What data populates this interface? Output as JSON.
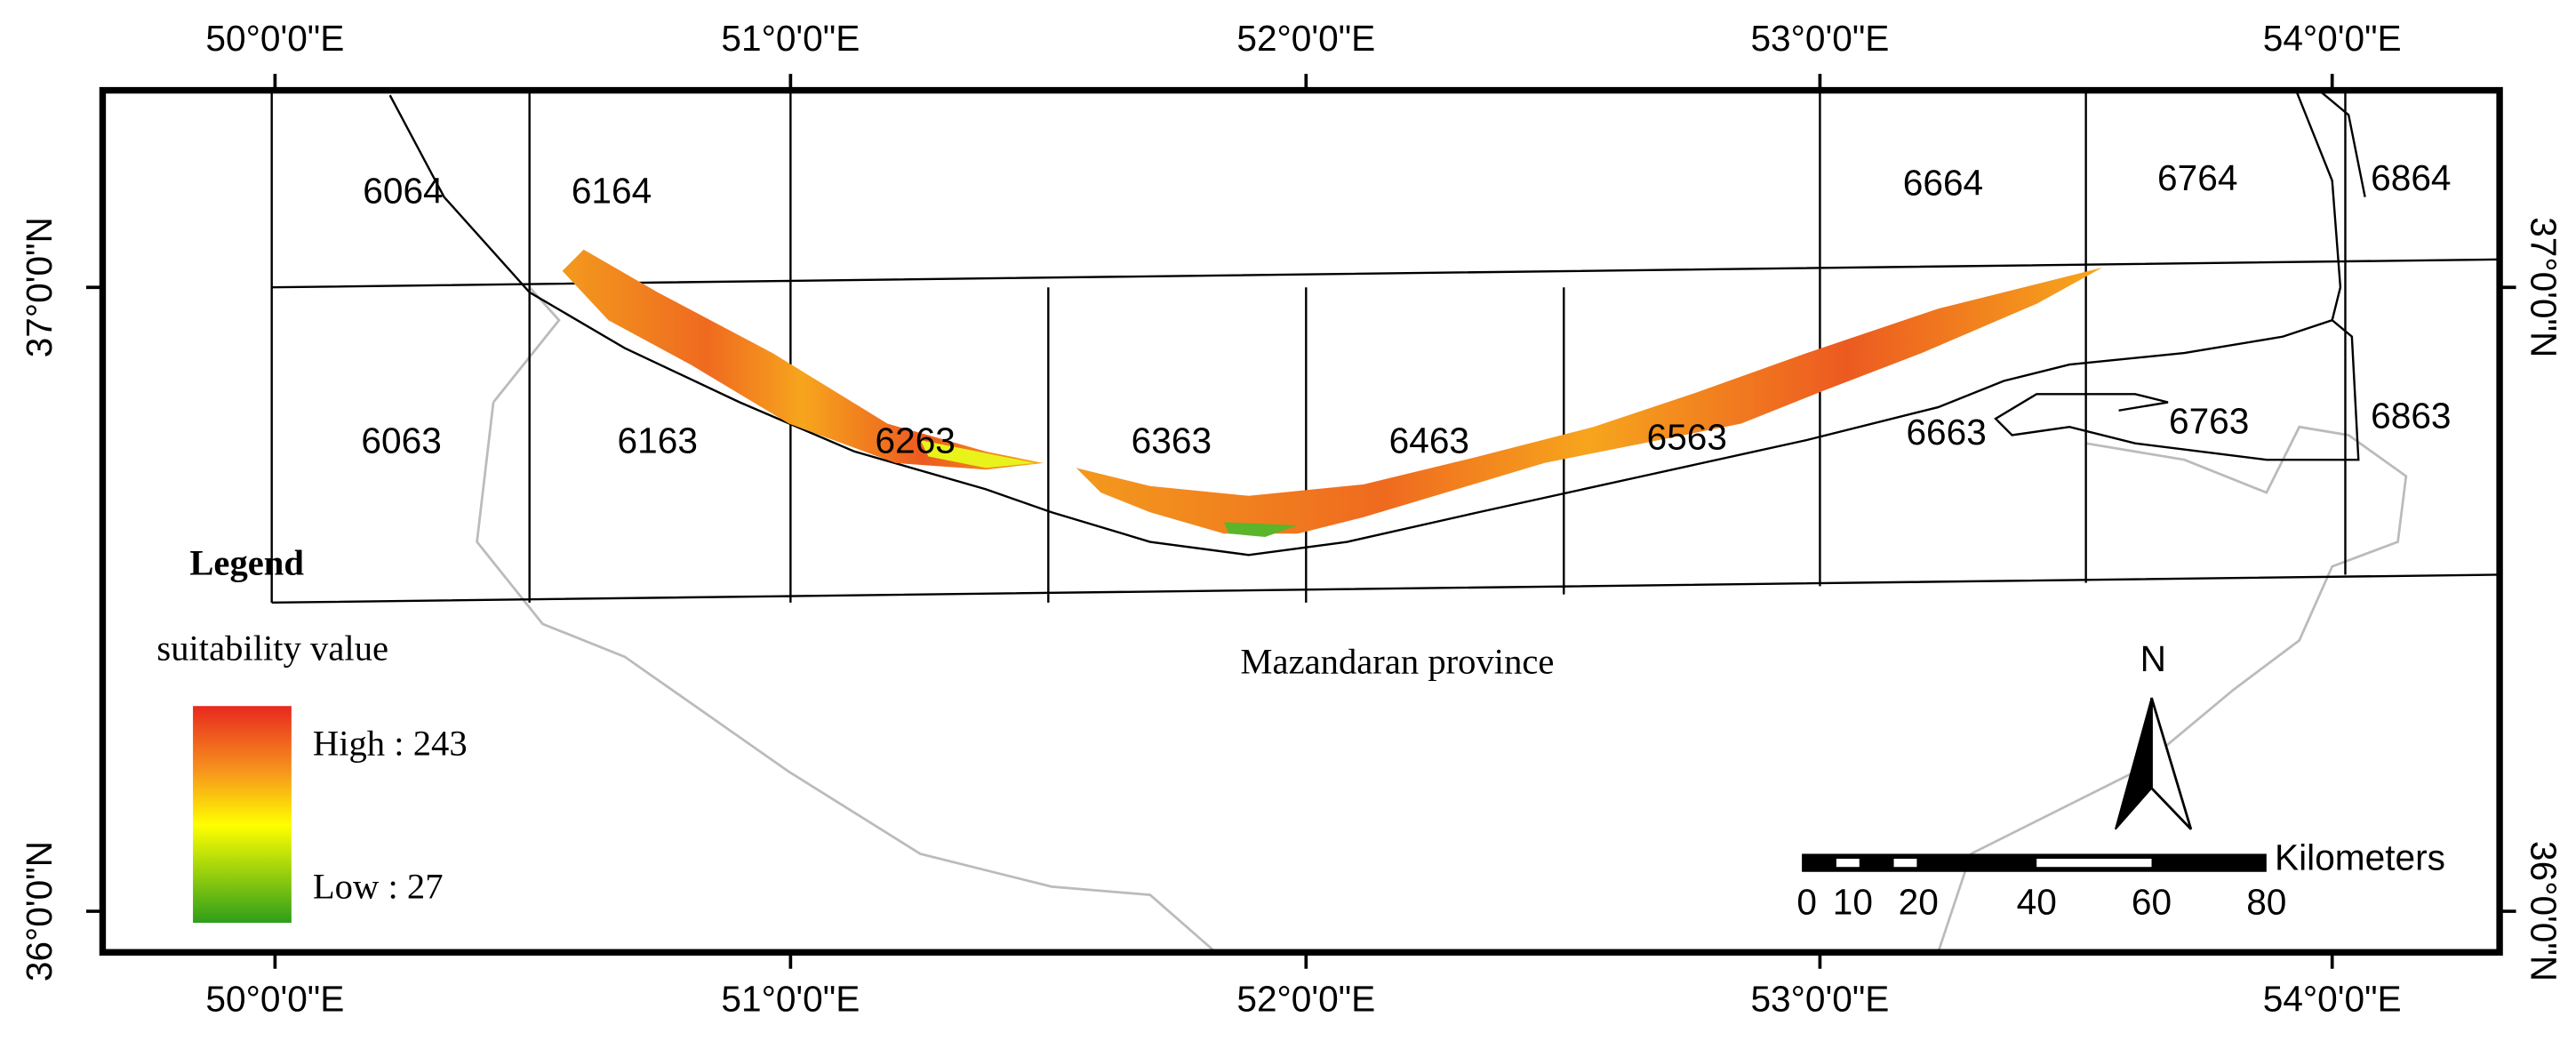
{
  "longitude_labels": [
    "50°0'0\"E",
    "51°0'0\"E",
    "52°0'0\"E",
    "53°0'0\"E",
    "54°0'0\"E"
  ],
  "latitude_labels": [
    "37°0'0\"N",
    "36°0'0\"N"
  ],
  "tiles": [
    "6064",
    "6164",
    "6664",
    "6764",
    "6864",
    "6063",
    "6163",
    "6263",
    "6363",
    "6463",
    "6563",
    "6663",
    "6763",
    "6863"
  ],
  "legend": {
    "title": "Legend",
    "subtitle": "suitability value",
    "high": "High : 243",
    "low": "Low : 27"
  },
  "region_label": "Mazandaran province",
  "north": "N",
  "scale_bar": {
    "ticks": [
      "0",
      "10",
      "20",
      "40",
      "60",
      "80"
    ],
    "unit": "Kilometers"
  }
}
